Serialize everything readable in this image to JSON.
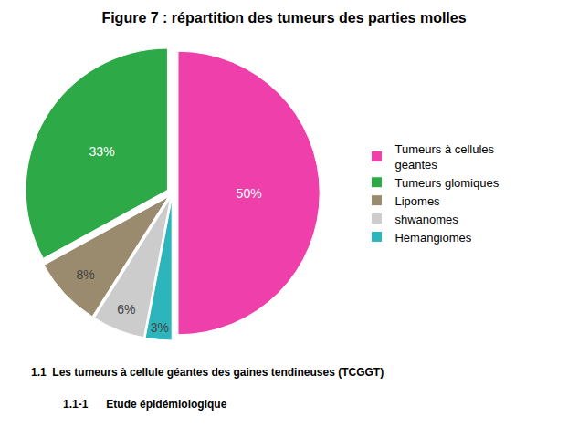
{
  "chart_data": {
    "type": "pie",
    "title": "Figure 7 : répartition des tumeurs des parties molles",
    "annotations": [
      "1.1  Les tumeurs à cellule géantes des gaines tendineuses (TCGGT)",
      "1.1-1      Etude épidémiologique"
    ],
    "categories": [
      "Tumeurs à cellules\ngéantes",
      "Tumeurs glomiques",
      "Lipomes",
      "shwanomes",
      "Hémangiomes"
    ],
    "values": [
      50,
      33,
      8,
      6,
      3
    ],
    "value_labels": [
      "50%",
      "33%",
      "8%",
      "6%",
      "3%"
    ],
    "colors": [
      "#ee3faa",
      "#2daa47",
      "#9b8b6e",
      "#cccccc",
      "#2db5bb"
    ],
    "data_labels": true,
    "legend": "right"
  }
}
